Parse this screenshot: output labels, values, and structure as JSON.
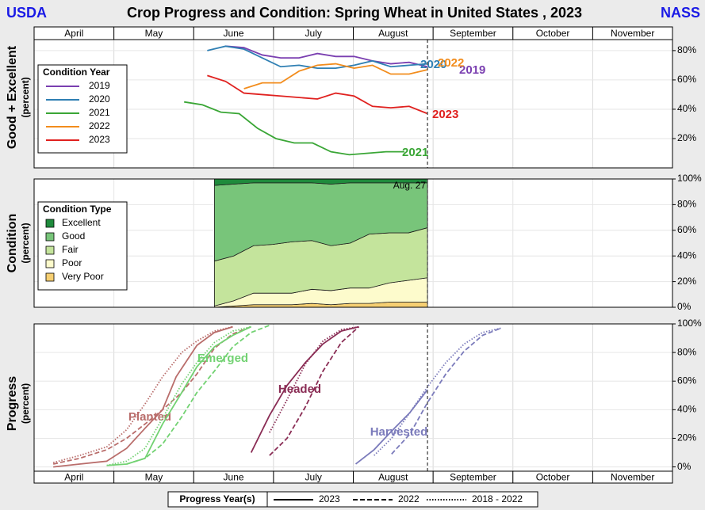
{
  "header": {
    "left": "USDA",
    "title": "Crop Progress and Condition: Spring Wheat in United States , 2023",
    "right": "NASS"
  },
  "chart_data": [
    {
      "type": "line",
      "ylabel": "Good + Excellent",
      "ylabel_unit": "(percent)",
      "categories": [
        "April",
        "May",
        "June",
        "July",
        "August",
        "September",
        "October",
        "November"
      ],
      "xlim": [
        0,
        8
      ],
      "ylim": [
        0,
        87.5
      ],
      "yticks": [
        {
          "value": 20,
          "label": "20%"
        },
        {
          "value": 40,
          "label": "40%"
        },
        {
          "value": 60,
          "label": "60%"
        },
        {
          "value": 80,
          "label": "80%"
        }
      ],
      "grid": true,
      "marker_x": 4.93,
      "legend_title": "Condition Year",
      "series": [
        {
          "name": "2019",
          "color": "#7a3fb0",
          "x": [
            2.4,
            2.63,
            2.86,
            3.09,
            3.32,
            3.55,
            3.78,
            4.01,
            4.24,
            4.47,
            4.7,
            4.93
          ],
          "values": [
            83,
            82,
            77,
            75,
            75,
            78,
            76,
            76,
            73,
            71,
            72,
            69
          ]
        },
        {
          "name": "2020",
          "color": "#2f7fb3",
          "x": [
            2.17,
            2.4,
            2.63,
            2.86,
            3.09,
            3.32,
            3.55,
            3.78,
            4.01,
            4.24,
            4.47,
            4.7,
            4.93
          ],
          "values": [
            80,
            83,
            81,
            75,
            69,
            70,
            68,
            68,
            70,
            73,
            69,
            70,
            71
          ]
        },
        {
          "name": "2021",
          "color": "#3aa636",
          "x": [
            1.88,
            2.11,
            2.34,
            2.57,
            2.8,
            3.03,
            3.26,
            3.49,
            3.72,
            3.95,
            4.18,
            4.41,
            4.64
          ],
          "values": [
            45,
            43,
            38,
            37,
            27,
            20,
            17,
            17,
            11,
            9,
            10,
            11,
            11
          ]
        },
        {
          "name": "2022",
          "color": "#f28c1c",
          "x": [
            2.63,
            2.86,
            3.09,
            3.32,
            3.55,
            3.78,
            4.01,
            4.24,
            4.47,
            4.7,
            4.93
          ],
          "values": [
            54,
            58,
            58,
            66,
            70,
            71,
            68,
            70,
            64,
            64,
            67
          ]
        },
        {
          "name": "2023",
          "color": "#e0211f",
          "x": [
            2.17,
            2.4,
            2.63,
            2.86,
            3.09,
            3.32,
            3.55,
            3.78,
            4.01,
            4.24,
            4.47,
            4.7,
            4.93
          ],
          "values": [
            63,
            59,
            51,
            50,
            49,
            48,
            47,
            51,
            49,
            42,
            41,
            42,
            37
          ]
        }
      ]
    },
    {
      "type": "area",
      "ylabel": "Condition",
      "ylabel_unit": "(percent)",
      "xlim": [
        0,
        8
      ],
      "ylim": [
        0,
        100
      ],
      "yticks": [
        {
          "value": 0,
          "label": "0%"
        },
        {
          "value": 20,
          "label": "20%"
        },
        {
          "value": 40,
          "label": "40%"
        },
        {
          "value": 60,
          "label": "60%"
        },
        {
          "value": 80,
          "label": "80%"
        },
        {
          "value": 100,
          "label": "100%"
        }
      ],
      "grid": true,
      "marker_x": 4.93,
      "marker_label": "Aug. 27",
      "legend_title": "Condition Type",
      "x": [
        2.26,
        2.5,
        2.75,
        2.99,
        3.23,
        3.48,
        3.72,
        3.96,
        4.2,
        4.45,
        4.69,
        4.93
      ],
      "series": [
        {
          "name": "Very Poor",
          "color": "#f6cf72",
          "values": [
            0,
            1,
            2,
            2,
            2,
            3,
            2,
            3,
            3,
            4,
            4,
            4
          ]
        },
        {
          "name": "Poor",
          "color": "#fdfbcc",
          "values": [
            1,
            4,
            9,
            9,
            9,
            11,
            11,
            12,
            12,
            15,
            17,
            19
          ]
        },
        {
          "name": "Fair",
          "color": "#c4e49c",
          "values": [
            35,
            35,
            37,
            38,
            40,
            38,
            35,
            35,
            42,
            39,
            37,
            39
          ]
        },
        {
          "name": "Good",
          "color": "#78c57a",
          "values": [
            59,
            56,
            49,
            48,
            46,
            45,
            48,
            47,
            40,
            39,
            39,
            35
          ]
        },
        {
          "name": "Excellent",
          "color": "#1f8b3c",
          "values": [
            5,
            4,
            3,
            3,
            3,
            3,
            4,
            3,
            3,
            3,
            3,
            3
          ]
        }
      ]
    },
    {
      "type": "line",
      "ylabel": "Progress",
      "ylabel_unit": "(percent)",
      "categories": [
        "April",
        "May",
        "June",
        "July",
        "August",
        "September",
        "October",
        "November"
      ],
      "xlim": [
        0,
        8
      ],
      "ylim": [
        -3,
        100
      ],
      "yticks": [
        {
          "value": 0,
          "label": "0%"
        },
        {
          "value": 20,
          "label": "20%"
        },
        {
          "value": 40,
          "label": "40%"
        },
        {
          "value": 60,
          "label": "60%"
        },
        {
          "value": 80,
          "label": "80%"
        },
        {
          "value": 100,
          "label": "100%"
        }
      ],
      "grid": true,
      "marker_x": 4.93,
      "style_legend": {
        "title": "Progress Year(s)",
        "entries": [
          {
            "label": "2023",
            "dash": "solid"
          },
          {
            "label": "2022",
            "dash": "dashed"
          },
          {
            "label": "2018 - 2022",
            "dash": "dotted"
          }
        ]
      },
      "series": [
        {
          "name": "Planted",
          "color": "#b96d6b",
          "lines": [
            {
              "dash": "solid",
              "x": [
                0.24,
                0.57,
                0.91,
                1.16,
                1.39,
                1.61,
                1.78,
                2.04,
                2.26,
                2.49
              ],
              "values": [
                0,
                2,
                4,
                13,
                27,
                40,
                63,
                85,
                94,
                98
              ]
            },
            {
              "dash": "dashed",
              "x": [
                0.24,
                0.57,
                0.91,
                1.16,
                1.39,
                1.61,
                1.85,
                2.04,
                2.26,
                2.49,
                2.72
              ],
              "values": [
                2,
                6,
                12,
                20,
                30,
                40,
                52,
                65,
                83,
                93,
                98
              ]
            },
            {
              "dash": "dotted",
              "x": [
                0.24,
                0.57,
                0.91,
                1.16,
                1.39,
                1.61,
                1.85,
                2.04,
                2.26,
                2.49
              ],
              "values": [
                3,
                8,
                14,
                26,
                44,
                63,
                80,
                88,
                95,
                98
              ]
            }
          ]
        },
        {
          "name": "Emerged",
          "color": "#72d272",
          "lines": [
            {
              "dash": "solid",
              "x": [
                0.91,
                1.16,
                1.39,
                1.61,
                1.85,
                2.04,
                2.26,
                2.49,
                2.72
              ],
              "values": [
                1,
                2,
                6,
                30,
                52,
                70,
                84,
                92,
                98
              ]
            },
            {
              "dash": "dashed",
              "x": [
                1.16,
                1.39,
                1.61,
                1.85,
                2.04,
                2.26,
                2.49,
                2.72,
                2.95
              ],
              "values": [
                2,
                6,
                16,
                35,
                52,
                67,
                84,
                94,
                99
              ]
            },
            {
              "dash": "dotted",
              "x": [
                0.91,
                1.16,
                1.39,
                1.61,
                1.85,
                2.04,
                2.26,
                2.49,
                2.72
              ],
              "values": [
                1,
                4,
                13,
                34,
                58,
                73,
                87,
                95,
                98
              ]
            }
          ]
        },
        {
          "name": "Headed",
          "color": "#8a2d55",
          "lines": [
            {
              "dash": "solid",
              "x": [
                2.72,
                2.95,
                3.17,
                3.4,
                3.62,
                3.85,
                4.07
              ],
              "values": [
                10,
                36,
                57,
                73,
                86,
                95,
                98
              ]
            },
            {
              "dash": "dashed",
              "x": [
                2.95,
                3.17,
                3.4,
                3.62,
                3.85,
                4.07
              ],
              "values": [
                8,
                20,
                42,
                67,
                87,
                98
              ]
            },
            {
              "dash": "dotted",
              "x": [
                2.95,
                3.17,
                3.4,
                3.62,
                3.85,
                4.07
              ],
              "values": [
                24,
                47,
                72,
                88,
                96,
                98
              ]
            }
          ]
        },
        {
          "name": "Harvested",
          "color": "#7b7bbb",
          "lines": [
            {
              "dash": "solid",
              "x": [
                4.03,
                4.26,
                4.48,
                4.71,
                4.93
              ],
              "values": [
                2,
                12,
                25,
                38,
                54
              ]
            },
            {
              "dash": "dashed",
              "x": [
                4.48,
                4.71,
                4.93,
                5.16,
                5.39,
                5.62,
                5.85
              ],
              "values": [
                9,
                23,
                45,
                65,
                81,
                92,
                97
              ]
            },
            {
              "dash": "dotted",
              "x": [
                4.26,
                4.48,
                4.71,
                4.93,
                5.16,
                5.39,
                5.62,
                5.85
              ],
              "values": [
                8,
                20,
                38,
                56,
                73,
                86,
                94,
                97
              ]
            }
          ]
        }
      ]
    }
  ]
}
